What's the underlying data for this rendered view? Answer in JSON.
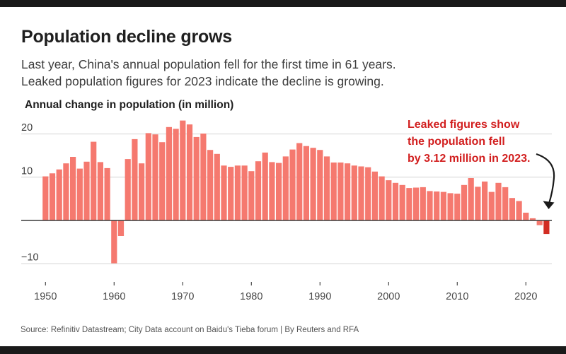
{
  "page": {
    "title": "Population decline grows",
    "subtitle_lines": [
      "Last year, China's annual population fell for the first time in 61 years.",
      "Leaked population figures for 2023 indicate the decline is growing."
    ],
    "source": "Source: Refinitiv Datastream; City Data account on Baidu's Tieba forum | By Reuters and RFA"
  },
  "chart_data": {
    "type": "bar",
    "title": "Annual change in population (in million)",
    "xlabel": "",
    "ylabel": "Annual change in population (in million)",
    "ylim": [
      -13,
      25
    ],
    "grid": "horizontal",
    "legend": "none",
    "x": [
      1950,
      1951,
      1952,
      1953,
      1954,
      1955,
      1956,
      1957,
      1958,
      1959,
      1960,
      1961,
      1962,
      1963,
      1964,
      1965,
      1966,
      1967,
      1968,
      1969,
      1970,
      1971,
      1972,
      1973,
      1974,
      1975,
      1976,
      1977,
      1978,
      1979,
      1980,
      1981,
      1982,
      1983,
      1984,
      1985,
      1986,
      1987,
      1988,
      1989,
      1990,
      1991,
      1992,
      1993,
      1994,
      1995,
      1996,
      1997,
      1998,
      1999,
      2000,
      2001,
      2002,
      2003,
      2004,
      2005,
      2006,
      2007,
      2008,
      2009,
      2010,
      2011,
      2012,
      2013,
      2014,
      2015,
      2016,
      2017,
      2018,
      2019,
      2020,
      2021,
      2022,
      2023
    ],
    "values": [
      10.2,
      10.9,
      11.8,
      13.2,
      14.7,
      12.0,
      13.6,
      18.2,
      13.5,
      12.1,
      -9.9,
      -3.6,
      14.2,
      18.8,
      13.2,
      20.2,
      19.9,
      18.1,
      21.6,
      21.2,
      23.1,
      22.2,
      19.3,
      20.1,
      16.3,
      15.4,
      12.7,
      12.4,
      12.7,
      12.7,
      11.4,
      13.7,
      15.7,
      13.5,
      13.3,
      14.8,
      16.4,
      17.9,
      17.2,
      16.8,
      16.3,
      14.8,
      13.4,
      13.4,
      13.2,
      12.7,
      12.5,
      12.3,
      11.3,
      10.2,
      9.3,
      8.7,
      8.2,
      7.5,
      7.6,
      7.7,
      6.8,
      6.7,
      6.6,
      6.3,
      6.2,
      8.2,
      9.8,
      7.8,
      9.0,
      6.6,
      8.7,
      7.7,
      5.2,
      4.5,
      1.8,
      0.5,
      -1.1,
      -3.12
    ],
    "yticks": [
      {
        "value": 20,
        "label": "20"
      },
      {
        "value": 10,
        "label": "10"
      },
      {
        "value": -10,
        "label": "−10"
      }
    ],
    "xticks": [
      1950,
      1960,
      1970,
      1980,
      1990,
      2000,
      2010,
      2020
    ],
    "bar_color": "#f5796f",
    "highlight": {
      "year": 2023,
      "color": "#d22d23"
    },
    "annotation": {
      "lines": [
        "Leaked figures show",
        "the population fell",
        "by 3.12 million in 2023."
      ],
      "color": "#d21f1f"
    }
  }
}
